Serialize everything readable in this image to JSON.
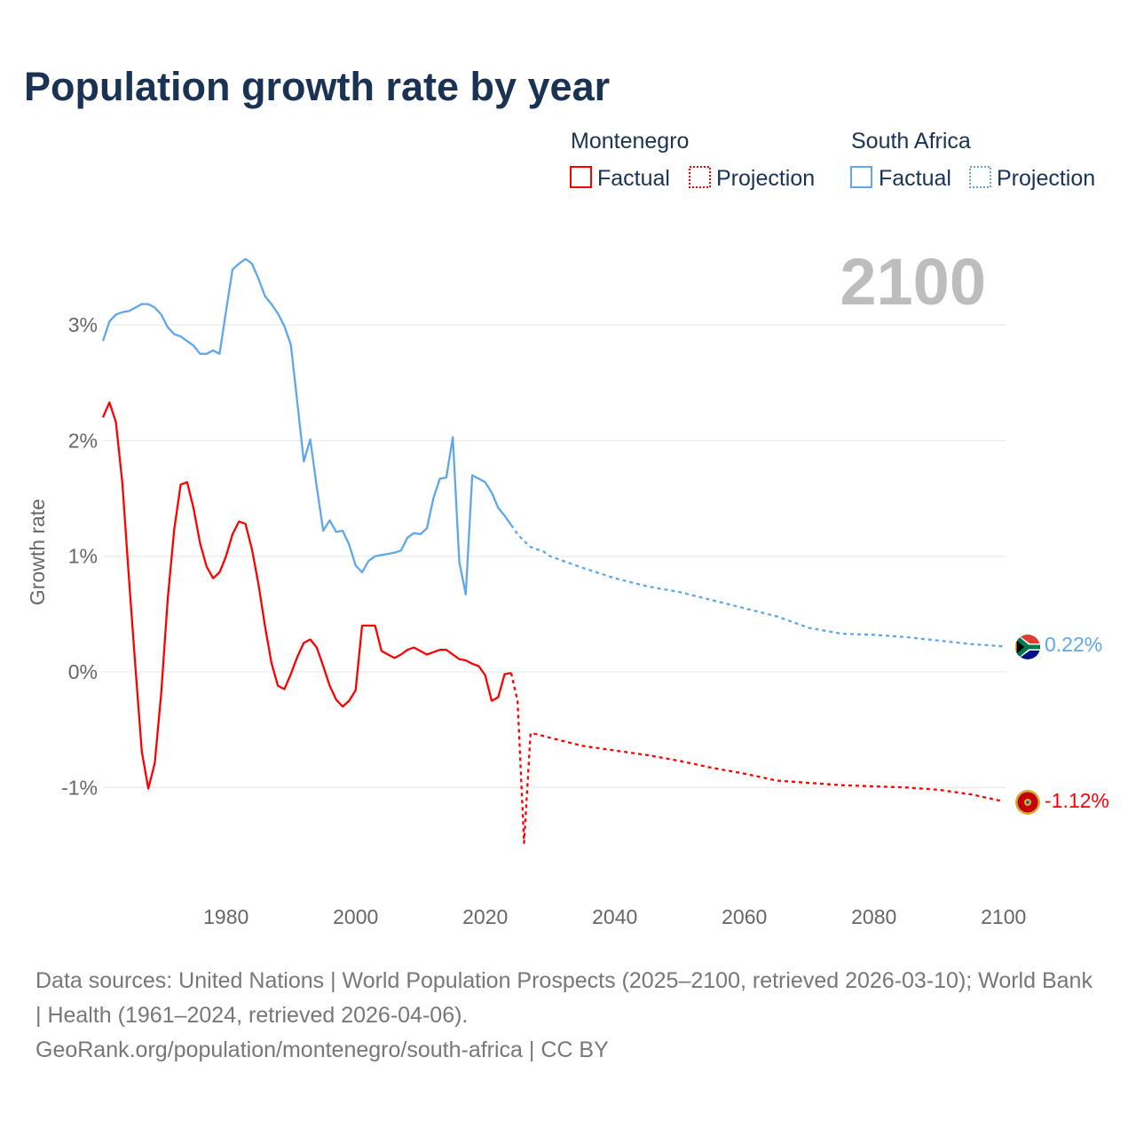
{
  "title": "Population growth rate by year",
  "footer": {
    "line1": "Data sources: United Nations | World Population Prospects (2025–2100, retrieved 2026-03-10); World Bank | Health (1961–2024, retrieved 2026-04-06).",
    "line2": "GeoRank.org/population/montenegro/south-africa | CC BY"
  },
  "current_year": "2100",
  "legend": {
    "groups": [
      {
        "name": "Montenegro",
        "color": "#ff0000",
        "factual": "Factual",
        "projection": "Projection"
      },
      {
        "name": "South Africa",
        "color": "#5ea7ea",
        "factual": "Factual",
        "projection": "Projection"
      }
    ]
  },
  "chart_data": {
    "type": "line",
    "title": "Population growth rate by year",
    "ylabel": "Growth rate",
    "xlim": [
      1961,
      2100
    ],
    "ylim": [
      -1.9,
      3.9
    ],
    "x_ticks": [
      1980,
      2000,
      2020,
      2040,
      2060,
      2080,
      2100
    ],
    "x_tick_labels": [
      "1980",
      "2000",
      "2020",
      "2040",
      "2060",
      "2080",
      "2100"
    ],
    "y_ticks": [
      -1,
      0,
      1,
      2,
      3
    ],
    "y_tick_labels": [
      "-1%",
      "0%",
      "1%",
      "2%",
      "3%"
    ],
    "grid": true,
    "end_labels": {
      "south_africa": "0.22%",
      "montenegro": "-1.12%"
    },
    "series": [
      {
        "name": "South Africa",
        "color": "#5ea7ea",
        "factual": {
          "x": [
            1961,
            1962,
            1963,
            1964,
            1965,
            1966,
            1967,
            1968,
            1969,
            1970,
            1971,
            1972,
            1973,
            1974,
            1975,
            1976,
            1977,
            1978,
            1979,
            1980,
            1981,
            1982,
            1983,
            1984,
            1985,
            1986,
            1987,
            1988,
            1989,
            1990,
            1991,
            1992,
            1993,
            1994,
            1995,
            1996,
            1997,
            1998,
            1999,
            2000,
            2001,
            2002,
            2003,
            2004,
            2005,
            2006,
            2007,
            2008,
            2009,
            2010,
            2011,
            2012,
            2013,
            2014,
            2015,
            2016,
            2017,
            2018,
            2019,
            2020,
            2021,
            2022,
            2023,
            2024
          ],
          "y": [
            2.86,
            3.03,
            3.09,
            3.11,
            3.12,
            3.15,
            3.18,
            3.18,
            3.15,
            3.09,
            2.98,
            2.92,
            2.9,
            2.86,
            2.82,
            2.75,
            2.75,
            2.78,
            2.75,
            3.12,
            3.48,
            3.53,
            3.57,
            3.53,
            3.4,
            3.25,
            3.18,
            3.1,
            2.99,
            2.83,
            2.33,
            1.82,
            2.01,
            1.6,
            1.22,
            1.31,
            1.21,
            1.22,
            1.1,
            0.92,
            0.86,
            0.96,
            1.0,
            1.01,
            1.02,
            1.03,
            1.05,
            1.16,
            1.2,
            1.19,
            1.24,
            1.5,
            1.67,
            1.68,
            2.03,
            0.95,
            0.67,
            1.7,
            1.67,
            1.64,
            1.55,
            1.42,
            1.35,
            1.27
          ]
        },
        "projection": {
          "x": [
            2024,
            2025,
            2026,
            2027,
            2028,
            2029,
            2030,
            2035,
            2040,
            2045,
            2050,
            2055,
            2060,
            2065,
            2070,
            2075,
            2080,
            2085,
            2090,
            2095,
            2100
          ],
          "y": [
            1.27,
            1.19,
            1.13,
            1.08,
            1.06,
            1.04,
            1.0,
            0.9,
            0.81,
            0.74,
            0.69,
            0.62,
            0.55,
            0.48,
            0.38,
            0.33,
            0.32,
            0.3,
            0.27,
            0.24,
            0.22
          ]
        }
      },
      {
        "name": "Montenegro",
        "color": "#ff0000",
        "factual": {
          "x": [
            1961,
            1962,
            1963,
            1964,
            1965,
            1966,
            1967,
            1968,
            1969,
            1970,
            1971,
            1972,
            1973,
            1974,
            1975,
            1976,
            1977,
            1978,
            1979,
            1980,
            1981,
            1982,
            1983,
            1984,
            1985,
            1986,
            1987,
            1988,
            1989,
            1990,
            1991,
            1992,
            1993,
            1994,
            1995,
            1996,
            1997,
            1998,
            1999,
            2000,
            2001,
            2002,
            2003,
            2004,
            2005,
            2006,
            2007,
            2008,
            2009,
            2010,
            2011,
            2012,
            2013,
            2014,
            2015,
            2016,
            2017,
            2018,
            2019,
            2020,
            2021,
            2022,
            2023,
            2024
          ],
          "y": [
            2.2,
            2.33,
            2.16,
            1.63,
            0.82,
            0.05,
            -0.69,
            -1.01,
            -0.79,
            -0.18,
            0.63,
            1.23,
            1.62,
            1.64,
            1.41,
            1.11,
            0.91,
            0.81,
            0.86,
            1.0,
            1.19,
            1.3,
            1.28,
            1.06,
            0.76,
            0.4,
            0.08,
            -0.12,
            -0.15,
            -0.02,
            0.13,
            0.25,
            0.28,
            0.21,
            0.05,
            -0.12,
            -0.24,
            -0.3,
            -0.25,
            -0.16,
            0.4,
            0.4,
            0.4,
            0.18,
            0.15,
            0.12,
            0.15,
            0.19,
            0.21,
            0.18,
            0.15,
            0.17,
            0.19,
            0.19,
            0.15,
            0.11,
            0.1,
            0.07,
            0.05,
            -0.03,
            -0.25,
            -0.22,
            -0.02,
            -0.01
          ]
        },
        "projection": {
          "x": [
            2024,
            2025,
            2026,
            2027,
            2028,
            2030,
            2035,
            2040,
            2045,
            2050,
            2055,
            2060,
            2065,
            2070,
            2075,
            2080,
            2085,
            2090,
            2095,
            2100
          ],
          "y": [
            -0.01,
            -0.25,
            -1.48,
            -0.53,
            -0.54,
            -0.57,
            -0.64,
            -0.68,
            -0.72,
            -0.77,
            -0.83,
            -0.88,
            -0.94,
            -0.96,
            -0.98,
            -0.99,
            -1.0,
            -1.02,
            -1.06,
            -1.12
          ]
        }
      }
    ]
  }
}
